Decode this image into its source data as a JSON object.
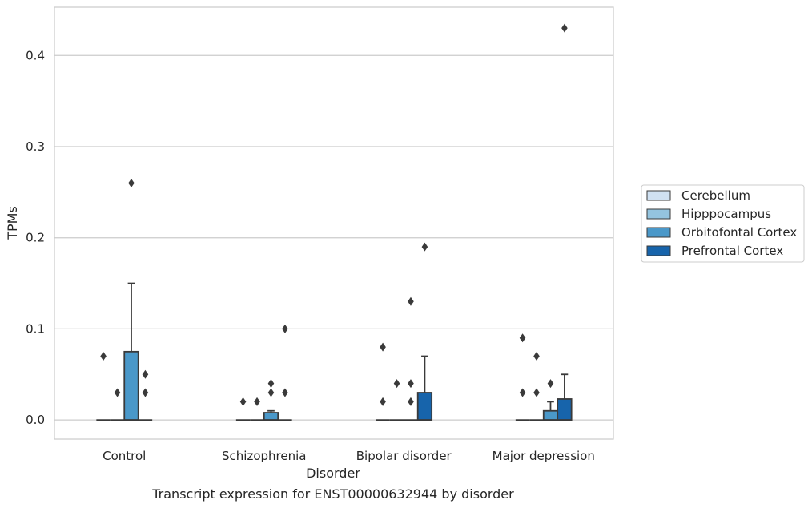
{
  "chart_data": {
    "type": "box",
    "caption": "Transcript expression for ENST00000632944 by disorder",
    "xlabel": "Disorder",
    "ylabel": "TPMs",
    "ylim": [
      -0.021,
      0.453
    ],
    "yticks": [
      0.0,
      0.1,
      0.2,
      0.3,
      0.4
    ],
    "ytick_labels": [
      "0.0",
      "0.1",
      "0.2",
      "0.3",
      "0.4"
    ],
    "grid": "horizontal",
    "legend_position": "right",
    "categories": [
      "Control",
      "Schizophrenia",
      "Bipolar disorder",
      "Major depression"
    ],
    "series": [
      {
        "name": "Cerebellum",
        "color": "#d0e1f2"
      },
      {
        "name": "Hipppocampus",
        "color": "#94c4df"
      },
      {
        "name": "Orbitofontal Cortex",
        "color": "#4a98c9"
      },
      {
        "name": "Prefrontal Cortex",
        "color": "#1764ab"
      }
    ],
    "boxes": [
      [
        {
          "q1": 0,
          "median": 0,
          "q3": 0,
          "whislo": 0,
          "whishi": 0,
          "fliers": [
            0.07
          ]
        },
        {
          "q1": 0,
          "median": 0,
          "q3": 0,
          "whislo": 0,
          "whishi": 0,
          "fliers": [
            0.03
          ]
        },
        {
          "q1": 0,
          "median": 0,
          "q3": 0.075,
          "whislo": 0,
          "whishi": 0.15,
          "fliers": [
            0.26
          ]
        },
        {
          "q1": 0,
          "median": 0,
          "q3": 0,
          "whislo": 0,
          "whishi": 0,
          "fliers": [
            0.05,
            0.03
          ]
        }
      ],
      [
        {
          "q1": 0,
          "median": 0,
          "q3": 0,
          "whislo": 0,
          "whishi": 0,
          "fliers": [
            0.02
          ]
        },
        {
          "q1": 0,
          "median": 0,
          "q3": 0,
          "whislo": 0,
          "whishi": 0,
          "fliers": [
            0.02
          ]
        },
        {
          "q1": 0,
          "median": 0,
          "q3": 0.008,
          "whislo": 0,
          "whishi": 0.01,
          "fliers": [
            0.04,
            0.03
          ]
        },
        {
          "q1": 0,
          "median": 0,
          "q3": 0,
          "whislo": 0,
          "whishi": 0,
          "fliers": [
            0.1,
            0.03
          ]
        }
      ],
      [
        {
          "q1": 0,
          "median": 0,
          "q3": 0,
          "whislo": 0,
          "whishi": 0,
          "fliers": [
            0.08,
            0.02
          ]
        },
        {
          "q1": 0,
          "median": 0,
          "q3": 0,
          "whislo": 0,
          "whishi": 0,
          "fliers": [
            0.04
          ]
        },
        {
          "q1": 0,
          "median": 0,
          "q3": 0,
          "whislo": 0,
          "whishi": 0,
          "fliers": [
            0.13,
            0.04,
            0.02
          ]
        },
        {
          "q1": 0,
          "median": 0,
          "q3": 0.03,
          "whislo": 0,
          "whishi": 0.07,
          "fliers": [
            0.19
          ]
        }
      ],
      [
        {
          "q1": 0,
          "median": 0,
          "q3": 0,
          "whislo": 0,
          "whishi": 0,
          "fliers": [
            0.09,
            0.03
          ]
        },
        {
          "q1": 0,
          "median": 0,
          "q3": 0,
          "whislo": 0,
          "whishi": 0,
          "fliers": [
            0.07,
            0.03
          ]
        },
        {
          "q1": 0,
          "median": 0,
          "q3": 0.01,
          "whislo": 0,
          "whishi": 0.02,
          "fliers": [
            0.04
          ]
        },
        {
          "q1": 0,
          "median": 0,
          "q3": 0.023,
          "whislo": 0,
          "whishi": 0.05,
          "fliers": [
            0.43
          ]
        }
      ]
    ]
  }
}
